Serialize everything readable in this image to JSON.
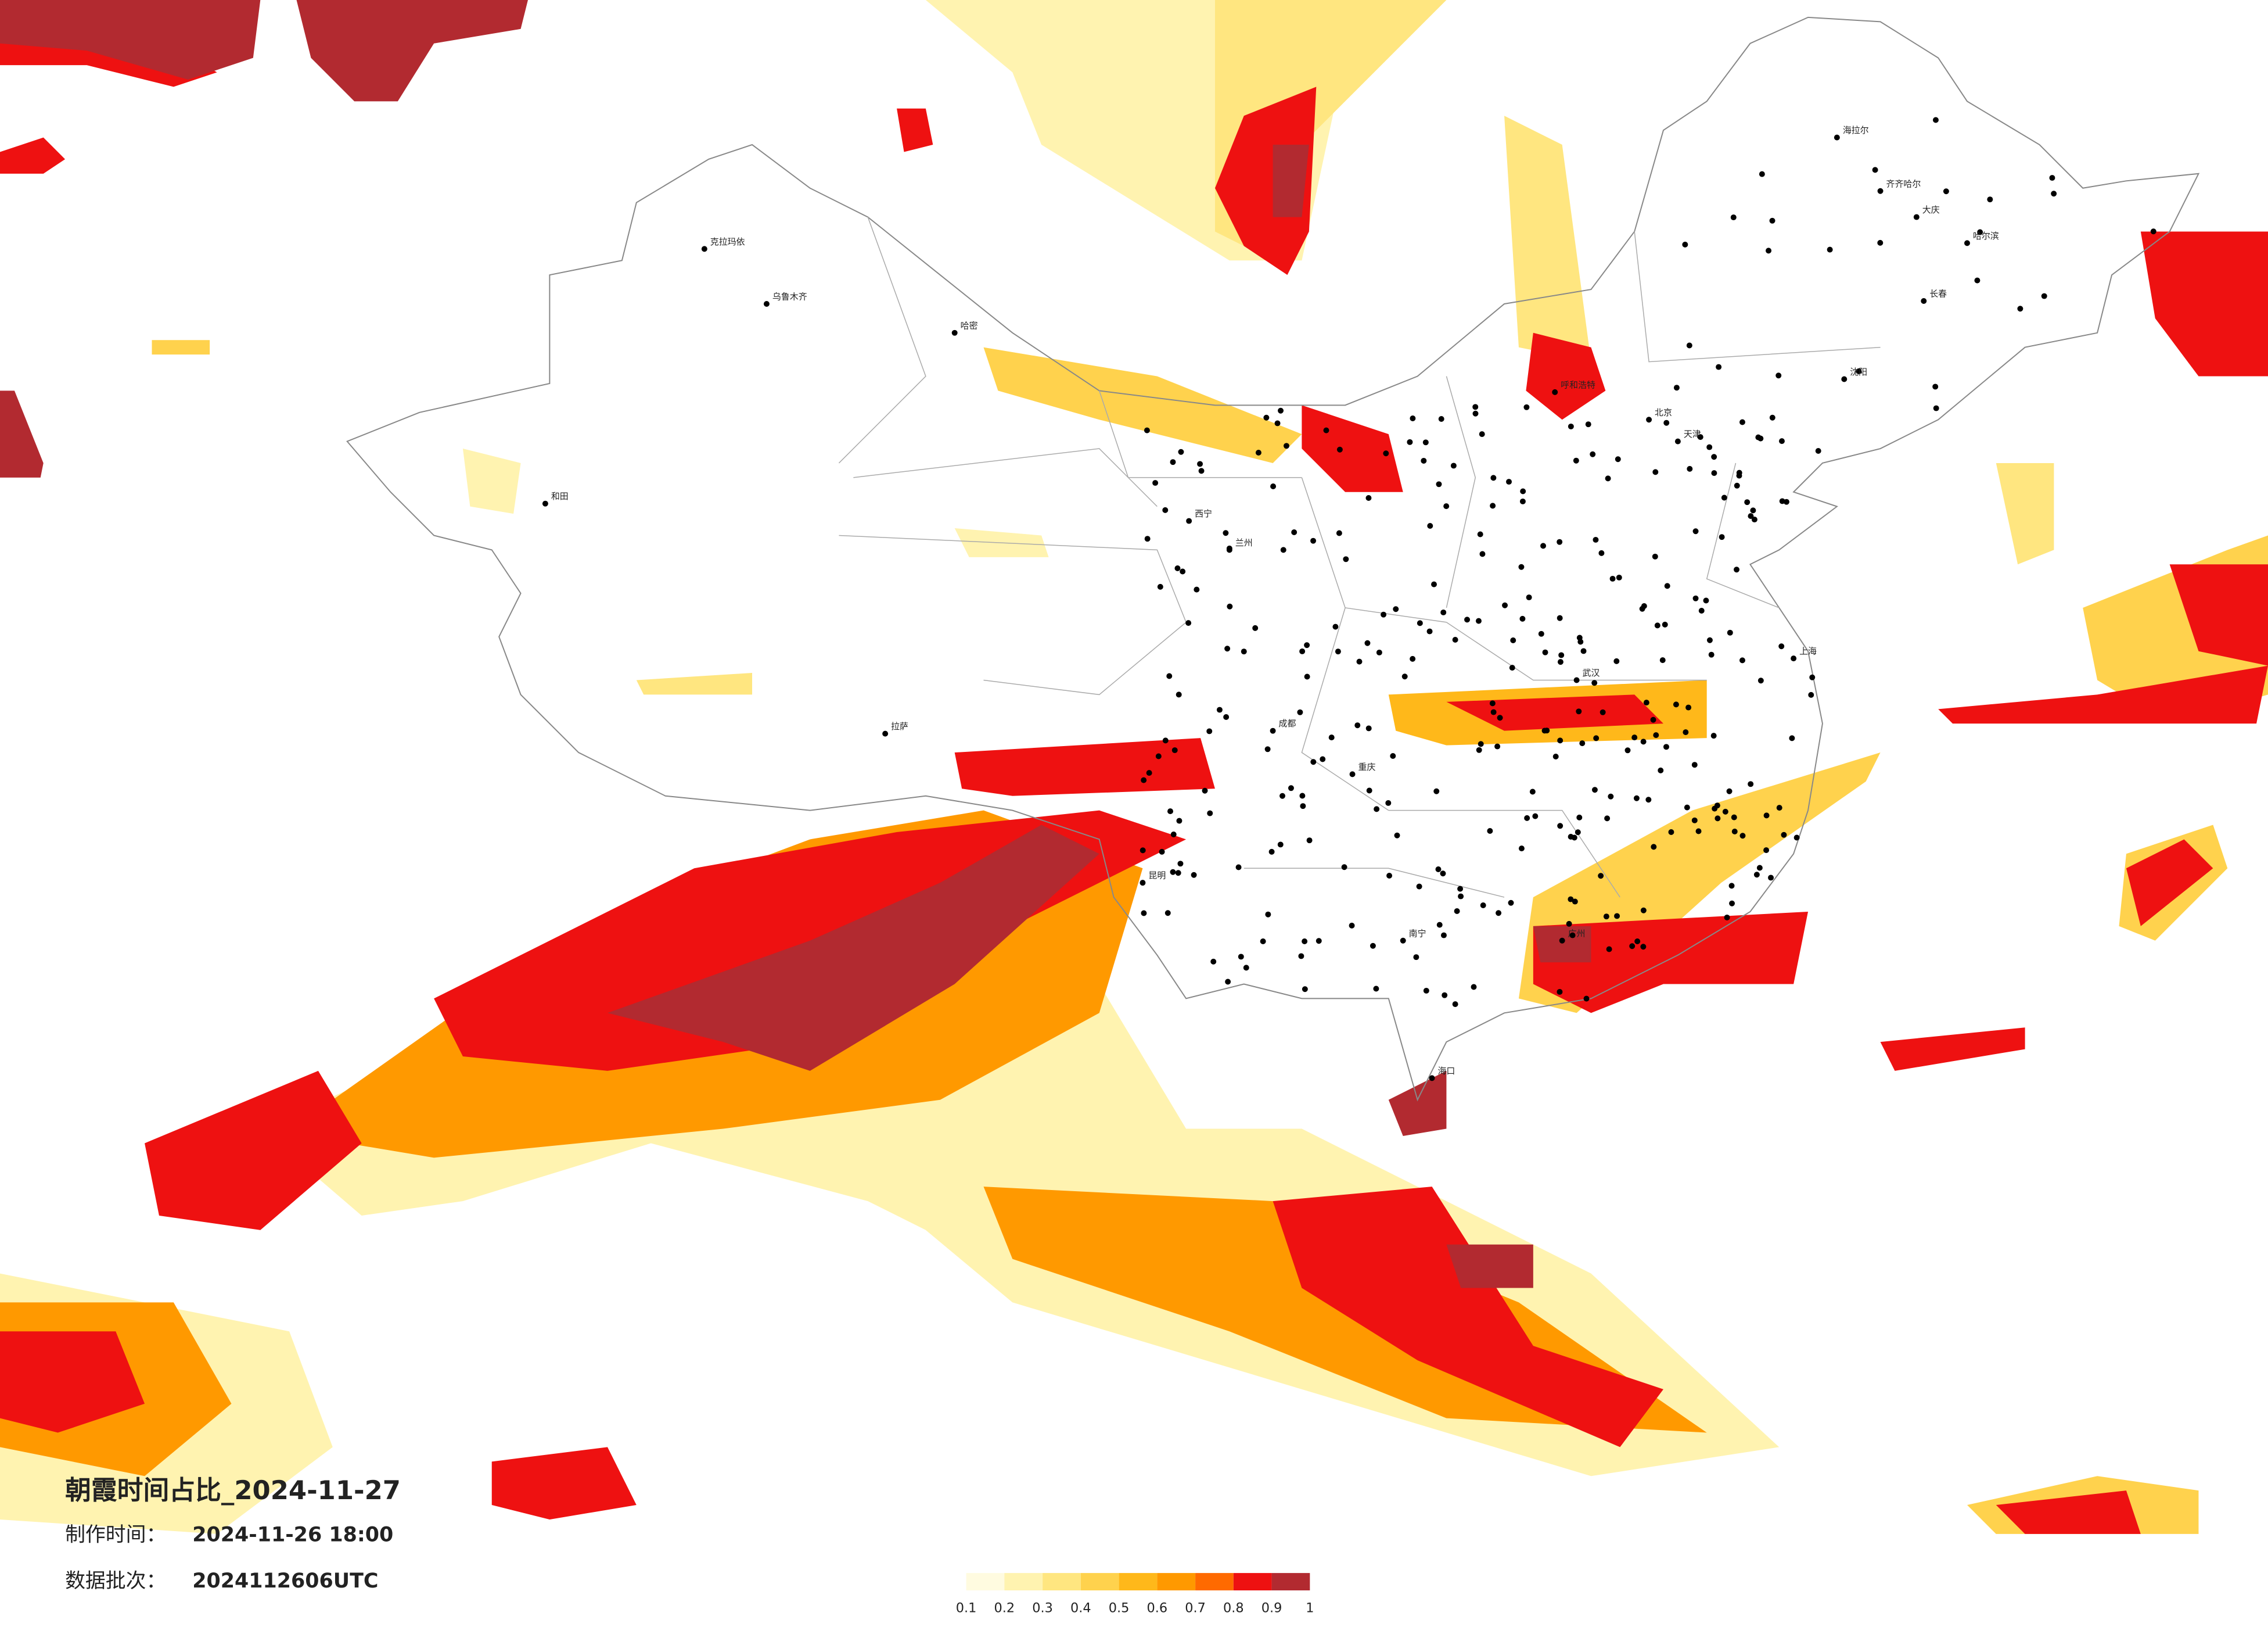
{
  "title": "朝霞时间占比_2024-11-27",
  "made_time": {
    "label": "制作时间：",
    "value": "2024-11-26 18:00"
  },
  "batch": {
    "label": "数据批次：",
    "value": "2024112606UTC"
  },
  "legend": {
    "ticks": [
      0.1,
      0.2,
      0.3,
      0.4,
      0.5,
      0.6,
      0.7,
      0.8,
      0.9,
      1
    ],
    "colors": [
      "#fffbe0",
      "#fff3b0",
      "#ffe680",
      "#ffd24d",
      "#ffb81a",
      "#ff9900",
      "#ff6a00",
      "#ee1111",
      "#b22a30"
    ]
  },
  "cities": [
    "克拉玛依",
    "乌鲁木齐",
    "哈密",
    "和田",
    "拉萨",
    "西宁",
    "兰州",
    "成都",
    "重庆",
    "北京",
    "天津",
    "上海",
    "广州",
    "哈尔滨",
    "长春",
    "沈阳",
    "武汉",
    "昆明",
    "南宁",
    "海口",
    "呼和浩特",
    "大庆",
    "齐齐哈尔",
    "海拉尔"
  ]
}
